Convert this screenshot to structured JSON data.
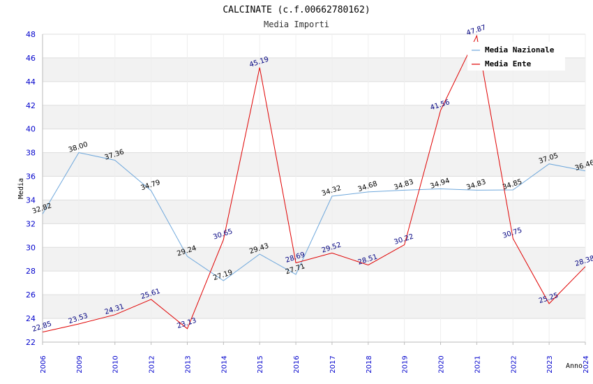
{
  "chart_data": {
    "type": "line",
    "title": "CALCINATE (c.f.00662780162)",
    "subtitle": "Media Importi",
    "xlabel": "Anno",
    "ylabel": "Media",
    "ylim": [
      22,
      48
    ],
    "yticks": [
      22,
      24,
      26,
      28,
      30,
      32,
      34,
      36,
      38,
      40,
      42,
      44,
      46,
      48
    ],
    "categories": [
      "2006",
      "2009",
      "2010",
      "2012",
      "2013",
      "2014",
      "2015",
      "2016",
      "2017",
      "2018",
      "2019",
      "2020",
      "2021",
      "2022",
      "2023",
      "2024"
    ],
    "grid": true,
    "legend_position": "top-right",
    "series": [
      {
        "name": "Media Nazionale",
        "color": "#6fa8dc",
        "values": [
          32.82,
          38.0,
          37.36,
          34.79,
          29.24,
          27.19,
          29.43,
          27.71,
          34.32,
          34.68,
          34.83,
          34.94,
          34.83,
          34.85,
          37.05,
          36.46
        ],
        "labels": [
          "32.82",
          "38.00",
          "37.36",
          "34.79",
          "29.24",
          "27.19",
          "29.43",
          "27.71",
          "34.32",
          "34.68",
          "34.83",
          "34.94",
          "34.83",
          "34.85",
          "37.05",
          "36.46"
        ]
      },
      {
        "name": "Media Ente",
        "color": "#e00000",
        "values": [
          22.85,
          23.53,
          24.31,
          25.61,
          23.13,
          30.65,
          45.19,
          28.69,
          29.52,
          28.51,
          30.22,
          41.56,
          47.87,
          30.75,
          25.25,
          28.38
        ],
        "labels": [
          "22.85",
          "23.53",
          "24.31",
          "25.61",
          "23.13",
          "30.65",
          "45.19",
          "28.69",
          "29.52",
          "28.51",
          "30.22",
          "41.56",
          "47.87",
          "30.75",
          "25.25",
          "28.38"
        ]
      }
    ]
  }
}
